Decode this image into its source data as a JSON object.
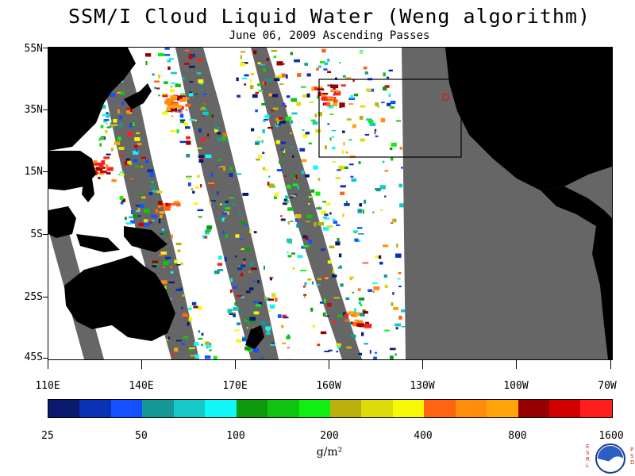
{
  "title": "SSM/I Cloud Liquid Water (Weng algorithm)",
  "subtitle": "June 06, 2009  Ascending Passes",
  "map": {
    "latitude_labels": [
      "55N",
      "35N",
      "15N",
      "5S",
      "25S",
      "45S"
    ],
    "longitude_labels": [
      "110E",
      "140E",
      "170E",
      "160W",
      "130W",
      "100W",
      "70W"
    ],
    "land_color": "#000000",
    "no_data_color": "#666666",
    "clear_color": "#ffffff",
    "box_outline_color": "#000000",
    "marker_color": "#ff0000"
  },
  "colorbar": {
    "colors": [
      "#0a1a6e",
      "#0a33b4",
      "#1450ff",
      "#139896",
      "#17c8c8",
      "#12f7f7",
      "#0d9a0d",
      "#0fc40f",
      "#10f010",
      "#bcb10c",
      "#dcdc0a",
      "#f7f708",
      "#ff6410",
      "#ff8c0a",
      "#ffa50a",
      "#960000",
      "#d20000",
      "#ff1e1e"
    ],
    "tick_labels": [
      "25",
      "50",
      "100",
      "200",
      "400",
      "800",
      "1600"
    ]
  },
  "units": "g/m²",
  "logo": {
    "left_text": "ESRL",
    "right_text": "PSD",
    "badge_text": "NOAA"
  }
}
